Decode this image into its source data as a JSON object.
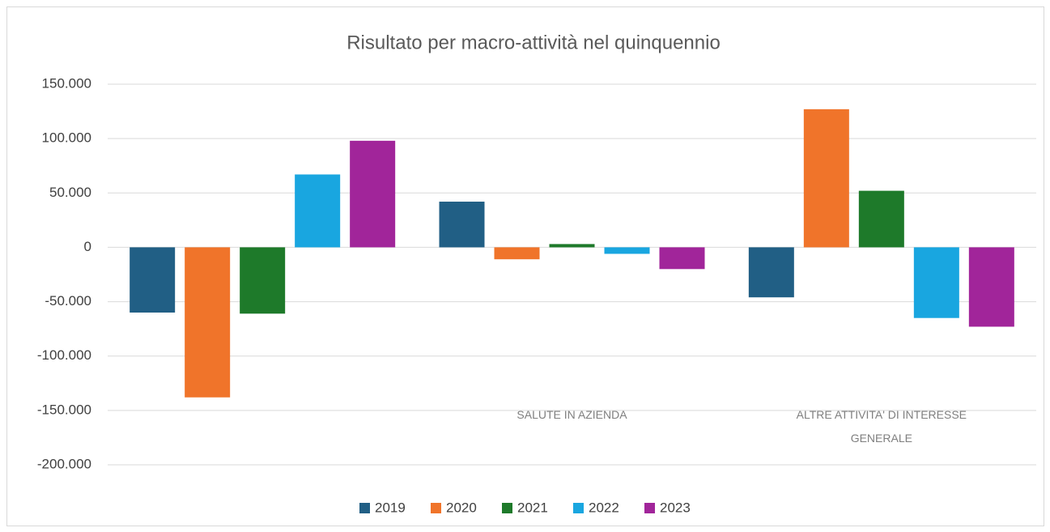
{
  "chart_data": {
    "type": "bar",
    "title": "Risultato per macro-attività nel quinquennio",
    "categories": [
      null,
      "SALUTE IN AZIENDA",
      "ALTRE ATTIVITA' DI INTERESSE GENERALE"
    ],
    "series": [
      {
        "name": "2019",
        "color": "#215f85",
        "values": [
          -60000,
          42000,
          -46000
        ]
      },
      {
        "name": "2020",
        "color": "#f0742a",
        "values": [
          -138000,
          -11000,
          127000
        ]
      },
      {
        "name": "2021",
        "color": "#1e7a2a",
        "values": [
          -61000,
          3000,
          52000
        ]
      },
      {
        "name": "2022",
        "color": "#19a6e0",
        "values": [
          67000,
          -6000,
          -65000
        ]
      },
      {
        "name": "2023",
        "color": "#a1259a",
        "values": [
          98000,
          -20000,
          -73000
        ]
      }
    ],
    "ylim": [
      -200000,
      150000
    ],
    "yticks": [
      {
        "value": -200000,
        "label": "-200.000"
      },
      {
        "value": -150000,
        "label": "-150.000"
      },
      {
        "value": -100000,
        "label": "-100.000"
      },
      {
        "value": -50000,
        "label": "-50.000"
      },
      0,
      {
        "value": 50000,
        "label": "50.000"
      },
      {
        "value": 100000,
        "label": "100.000"
      },
      {
        "value": 150000,
        "label": "150.000"
      }
    ],
    "grid": true,
    "legend": "bottom"
  }
}
